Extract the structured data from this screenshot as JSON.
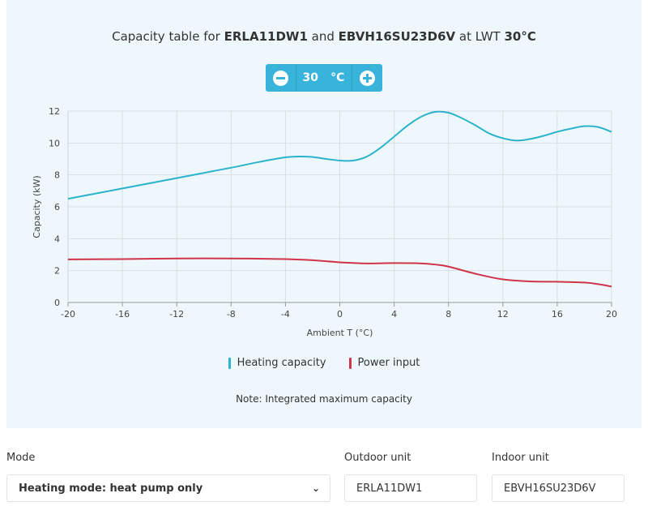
{
  "header": {
    "title_prefix": "Capacity table for ",
    "outdoor_bold": "ERLA11DW1",
    "and_text": " and ",
    "indoor_bold": "EBVH16SU23D6V",
    "at_text": " at LWT ",
    "lwt_bold": "30°C"
  },
  "stepper": {
    "value": "30",
    "unit": "°C",
    "minus_icon": "minus-circle-icon",
    "plus_icon": "plus-circle-icon",
    "accent": "#38b3d9"
  },
  "chart_data": {
    "type": "line",
    "xlabel": "Ambient T (°C)",
    "ylabel": "Capacity (kW)",
    "xlim": [
      -20,
      20
    ],
    "ylim": [
      0,
      12
    ],
    "xticks": [
      -20,
      -16,
      -12,
      -8,
      -4,
      0,
      4,
      8,
      12,
      16,
      20
    ],
    "yticks": [
      0,
      2,
      4,
      6,
      8,
      10,
      12
    ],
    "grid": true,
    "legend_position": "bottom",
    "series": [
      {
        "name": "Heating capacity",
        "color": "#2bb3cc",
        "x": [
          -20,
          -16,
          -12,
          -8,
          -6,
          -4,
          -3,
          -2,
          -1,
          0,
          1,
          2,
          3,
          4,
          5,
          6,
          7,
          8,
          9,
          10,
          11,
          12,
          13,
          14,
          15,
          16,
          17,
          18,
          19,
          20
        ],
        "y": [
          6.5,
          7.15,
          7.8,
          8.45,
          8.8,
          9.1,
          9.15,
          9.12,
          9.0,
          8.9,
          8.9,
          9.15,
          9.7,
          10.4,
          11.1,
          11.65,
          11.95,
          11.9,
          11.55,
          11.1,
          10.6,
          10.3,
          10.15,
          10.25,
          10.45,
          10.7,
          10.9,
          11.05,
          11.0,
          10.7
        ]
      },
      {
        "name": "Power input",
        "color": "#d1334a",
        "x": [
          -20,
          -16,
          -12,
          -8,
          -4,
          -2,
          0,
          2,
          4,
          6,
          7,
          8,
          10,
          12,
          14,
          16,
          18,
          19,
          20
        ],
        "y": [
          2.7,
          2.72,
          2.76,
          2.76,
          2.72,
          2.65,
          2.52,
          2.45,
          2.47,
          2.45,
          2.38,
          2.25,
          1.8,
          1.45,
          1.32,
          1.3,
          1.25,
          1.15,
          1.0
        ]
      }
    ],
    "note": "Note: Integrated maximum capacity"
  },
  "form": {
    "mode_label": "Mode",
    "mode_value": "Heating mode: heat pump only",
    "outdoor_label": "Outdoor unit",
    "outdoor_value": "ERLA11DW1",
    "indoor_label": "Indoor unit",
    "indoor_value": "EBVH16SU23D6V",
    "chevron_icon": "chevron-down-icon"
  }
}
